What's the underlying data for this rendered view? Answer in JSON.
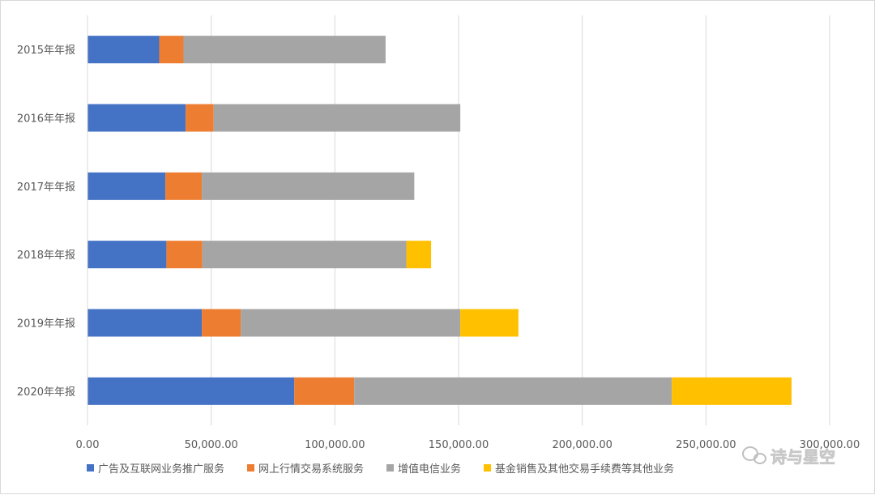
{
  "chart_data": {
    "type": "bar",
    "orientation": "horizontal",
    "stacked": true,
    "categories": [
      "2015年年报",
      "2016年年报",
      "2017年年报",
      "2018年年报",
      "2019年年报",
      "2020年年报"
    ],
    "series": [
      {
        "name": "广告及互联网业务推广服务",
        "color": "#4472c4",
        "values": [
          29000,
          39700,
          31500,
          31900,
          46200,
          83600
        ]
      },
      {
        "name": "网上行情交易系统服务",
        "color": "#ed7d31",
        "values": [
          9800,
          11300,
          14700,
          14500,
          15800,
          24200
        ]
      },
      {
        "name": "增值电信业务",
        "color": "#a5a5a5",
        "values": [
          81700,
          99700,
          85900,
          82500,
          88700,
          128400
        ]
      },
      {
        "name": "基金销售及其他交易手续费等其他业务",
        "color": "#ffc000",
        "values": [
          0,
          0,
          0,
          10000,
          23500,
          48400
        ]
      }
    ],
    "xlim": [
      0,
      300000
    ],
    "x_ticks": [
      "0.00",
      "50,000.00",
      "100,000.00",
      "150,000.00",
      "200,000.00",
      "250,000.00",
      "300,000.00"
    ],
    "grid": true,
    "legend_position": "bottom"
  },
  "watermark": {
    "text": "诗与星空",
    "icon": "wechat-icon"
  }
}
